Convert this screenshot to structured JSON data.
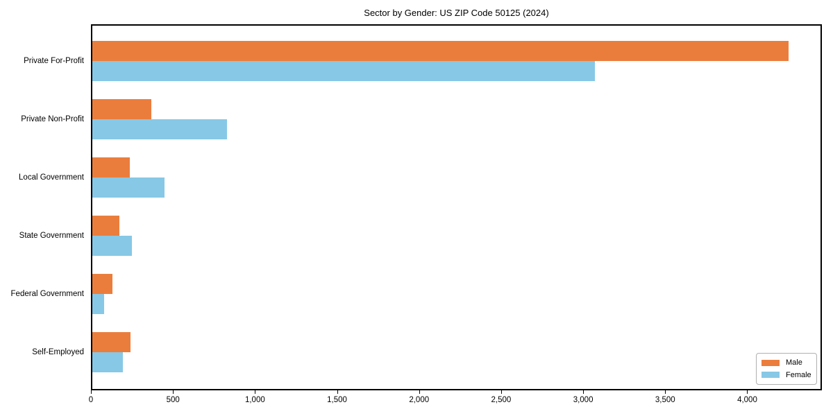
{
  "title": "Sector by Gender: US ZIP Code 50125 (2024)",
  "chart_data": {
    "type": "bar",
    "orientation": "horizontal",
    "title": "Sector by Gender: US ZIP Code 50125 (2024)",
    "categories": [
      "Private For-Profit",
      "Private Non-Profit",
      "Local Government",
      "State Government",
      "Federal Government",
      "Self-Employed"
    ],
    "series": [
      {
        "name": "Male",
        "color": "#EB7D3C",
        "values": [
          4250,
          370,
          235,
          175,
          130,
          240
        ]
      },
      {
        "name": "Female",
        "color": "#87C8E6",
        "values": [
          3070,
          830,
          450,
          250,
          80,
          195
        ]
      }
    ],
    "xlabel": "",
    "ylabel": "",
    "xlim": [
      0,
      4455
    ],
    "xticks": [
      0,
      500,
      1000,
      1500,
      2000,
      2500,
      3000,
      3500,
      4000
    ],
    "xtick_labels": [
      "0",
      "500",
      "1,000",
      "1,500",
      "2,000",
      "2,500",
      "3,000",
      "3,500",
      "4,000"
    ],
    "grid": false,
    "legend_position": "lower right",
    "background": "#ffffff"
  }
}
